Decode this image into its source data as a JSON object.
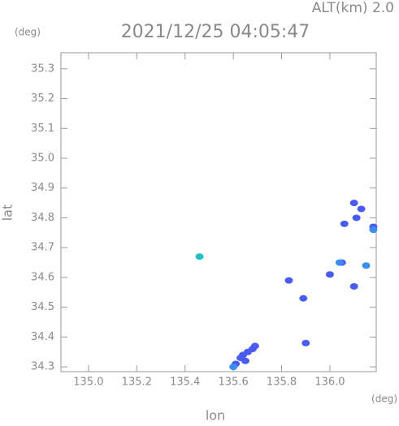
{
  "chart_data": {
    "type": "scatter",
    "header_left": "(deg)",
    "header_right": "ALT(km) 2.0",
    "title": "2021/12/25 04:05:47",
    "ylabel": "lat",
    "xlabel": "lon",
    "xunit": "(deg)",
    "xlim": [
      134.886,
      136.192
    ],
    "ylim": [
      34.284,
      35.354
    ],
    "xticks": [
      {
        "value": 135.0,
        "label": "135.0"
      },
      {
        "value": 135.2,
        "label": "135.2"
      },
      {
        "value": 135.4,
        "label": "135.4"
      },
      {
        "value": 135.6,
        "label": "135.6"
      },
      {
        "value": 135.8,
        "label": "135.8"
      },
      {
        "value": 136.0,
        "label": "136.0"
      }
    ],
    "yticks": [
      {
        "value": 34.3,
        "label": "34.3"
      },
      34.4,
      34.5,
      34.6,
      34.7,
      34.8,
      34.9,
      {
        "value": 35.0,
        "label": "35.0"
      },
      35.1,
      35.2,
      35.3
    ],
    "series": [
      {
        "color": "#4a5cf0",
        "x": [
          135.61,
          135.63,
          135.64,
          135.66,
          135.68,
          135.69,
          135.65,
          135.83,
          135.89,
          135.9,
          136.0,
          136.05,
          136.1,
          136.1,
          136.06,
          136.13,
          136.11,
          136.18
        ],
        "values": [
          34.31,
          34.33,
          34.34,
          34.35,
          34.36,
          34.37,
          34.32,
          34.59,
          34.53,
          34.38,
          34.61,
          34.65,
          34.57,
          34.85,
          34.78,
          34.83,
          34.8,
          34.77
        ]
      },
      {
        "color": "#3a8ef0",
        "x": [
          135.6,
          136.15,
          136.18,
          136.04
        ],
        "values": [
          34.3,
          34.64,
          34.76,
          34.65
        ]
      },
      {
        "color": "#20c0c0",
        "x": [
          135.46
        ],
        "values": [
          34.67
        ]
      }
    ]
  }
}
